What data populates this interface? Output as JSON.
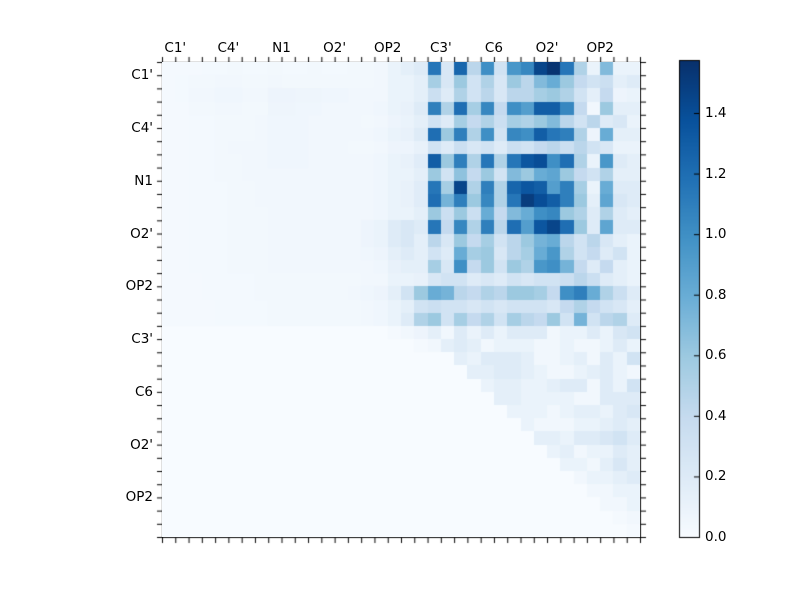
{
  "figure": {
    "background": "#ffffff",
    "frame_color": "#000000"
  },
  "chart_data": {
    "type": "heatmap",
    "title": "",
    "xlabel": "",
    "ylabel": "",
    "n": 36,
    "x_tick_labels": [
      "C1'",
      "C4'",
      "N1",
      "O2'",
      "OP2",
      "C3'",
      "C6",
      "O2'",
      "OP2"
    ],
    "y_tick_labels": [
      "C1'",
      "C4'",
      "N1",
      "O2'",
      "OP2",
      "C3'",
      "C6",
      "O2'",
      "OP2"
    ],
    "label_every_n_cells": 4,
    "grid": false,
    "colormap": "Blues",
    "vmin": 0.0,
    "vmax": 1.575,
    "colorbar_position": "right",
    "colorbar_ticks": [
      {
        "value": 0.0,
        "label": "0.0"
      },
      {
        "value": 0.2,
        "label": "0.2"
      },
      {
        "value": 0.4,
        "label": "0.4"
      },
      {
        "value": 0.6,
        "label": "0.6"
      },
      {
        "value": 0.8,
        "label": "0.8"
      },
      {
        "value": 1.0,
        "label": "1.0"
      },
      {
        "value": 1.2,
        "label": "1.2"
      },
      {
        "value": 1.4,
        "label": "1.4"
      }
    ],
    "cmap_stops": [
      [
        0.0,
        [
          247,
          251,
          255
        ]
      ],
      [
        0.125,
        [
          222,
          235,
          247
        ]
      ],
      [
        0.25,
        [
          198,
          219,
          239
        ]
      ],
      [
        0.375,
        [
          158,
          202,
          225
        ]
      ],
      [
        0.5,
        [
          107,
          174,
          214
        ]
      ],
      [
        0.625,
        [
          66,
          146,
          198
        ]
      ],
      [
        0.75,
        [
          33,
          113,
          181
        ]
      ],
      [
        0.875,
        [
          8,
          81,
          156
        ]
      ],
      [
        1.0,
        [
          8,
          48,
          107
        ]
      ]
    ],
    "matrix": [
      [
        0.02,
        0.02,
        0.02,
        0.03,
        0.03,
        0.04,
        0.03,
        0.03,
        0.04,
        0.03,
        0.03,
        0.04,
        0.03,
        0.03,
        0.04,
        0.04,
        0.05,
        0.1,
        0.15,
        0.2,
        1.15,
        0.25,
        1.25,
        0.45,
        1.0,
        0.3,
        0.95,
        1.05,
        1.45,
        1.55,
        1.15,
        0.5,
        0.1,
        0.7,
        0.1,
        0.1
      ],
      [
        0.02,
        0.03,
        0.04,
        0.04,
        0.05,
        0.05,
        0.04,
        0.04,
        0.05,
        0.04,
        0.04,
        0.04,
        0.04,
        0.04,
        0.04,
        0.04,
        0.05,
        0.1,
        0.1,
        0.15,
        0.55,
        0.25,
        0.6,
        0.3,
        0.5,
        0.25,
        0.6,
        0.45,
        0.7,
        0.8,
        0.6,
        0.4,
        0.3,
        0.35,
        0.15,
        0.2
      ],
      [
        0.02,
        0.03,
        0.05,
        0.05,
        0.06,
        0.06,
        0.05,
        0.05,
        0.08,
        0.08,
        0.07,
        0.07,
        0.06,
        0.06,
        0.05,
        0.05,
        0.05,
        0.1,
        0.1,
        0.15,
        0.35,
        0.2,
        0.5,
        0.3,
        0.45,
        0.25,
        0.45,
        0.45,
        0.55,
        0.6,
        0.5,
        0.3,
        0.15,
        0.4,
        0.08,
        0.1
      ],
      [
        0.02,
        0.02,
        0.04,
        0.04,
        0.05,
        0.05,
        0.04,
        0.04,
        0.07,
        0.07,
        0.06,
        0.06,
        0.05,
        0.05,
        0.05,
        0.05,
        0.06,
        0.1,
        0.12,
        0.2,
        1.1,
        0.5,
        1.2,
        0.55,
        1.05,
        0.4,
        1.0,
        0.9,
        1.3,
        1.3,
        1.05,
        0.4,
        0.05,
        0.6,
        0.15,
        0.15
      ],
      [
        0.02,
        0.02,
        0.03,
        0.03,
        0.04,
        0.04,
        0.04,
        0.05,
        0.06,
        0.06,
        0.06,
        0.05,
        0.05,
        0.05,
        0.05,
        0.04,
        0.05,
        0.08,
        0.1,
        0.15,
        0.3,
        0.2,
        0.55,
        0.4,
        0.5,
        0.35,
        0.55,
        0.5,
        0.6,
        0.7,
        0.45,
        0.3,
        0.45,
        0.2,
        0.25,
        0.1
      ],
      [
        0.02,
        0.02,
        0.03,
        0.03,
        0.04,
        0.04,
        0.04,
        0.05,
        0.06,
        0.06,
        0.06,
        0.05,
        0.05,
        0.05,
        0.05,
        0.05,
        0.06,
        0.1,
        0.12,
        0.2,
        1.2,
        0.6,
        1.1,
        0.5,
        1.0,
        0.3,
        1.05,
        1.0,
        1.3,
        1.15,
        1.1,
        0.5,
        0.08,
        0.8,
        0.15,
        0.15
      ],
      [
        0.02,
        0.02,
        0.03,
        0.03,
        0.04,
        0.05,
        0.05,
        0.05,
        0.06,
        0.06,
        0.06,
        0.05,
        0.05,
        0.05,
        0.04,
        0.04,
        0.05,
        0.08,
        0.08,
        0.12,
        0.3,
        0.2,
        0.35,
        0.25,
        0.3,
        0.2,
        0.35,
        0.3,
        0.4,
        0.45,
        0.35,
        0.45,
        0.3,
        0.25,
        0.1,
        0.1
      ],
      [
        0.02,
        0.02,
        0.03,
        0.03,
        0.04,
        0.04,
        0.05,
        0.05,
        0.06,
        0.06,
        0.06,
        0.05,
        0.05,
        0.05,
        0.05,
        0.05,
        0.06,
        0.1,
        0.12,
        0.18,
        1.3,
        0.6,
        1.1,
        0.5,
        1.15,
        0.5,
        1.15,
        1.35,
        1.4,
        1.0,
        1.2,
        0.5,
        0.1,
        0.95,
        0.2,
        0.15
      ],
      [
        0.02,
        0.02,
        0.03,
        0.03,
        0.04,
        0.04,
        0.05,
        0.05,
        0.05,
        0.05,
        0.05,
        0.05,
        0.05,
        0.05,
        0.05,
        0.05,
        0.06,
        0.1,
        0.1,
        0.15,
        0.6,
        0.3,
        0.65,
        0.4,
        0.6,
        0.3,
        0.7,
        0.6,
        0.8,
        0.85,
        0.6,
        0.4,
        0.3,
        0.5,
        0.15,
        0.15
      ],
      [
        0.02,
        0.02,
        0.03,
        0.03,
        0.03,
        0.04,
        0.04,
        0.05,
        0.05,
        0.05,
        0.05,
        0.05,
        0.05,
        0.05,
        0.05,
        0.05,
        0.06,
        0.1,
        0.12,
        0.18,
        1.15,
        0.55,
        1.45,
        0.5,
        1.1,
        0.5,
        1.25,
        1.35,
        1.3,
        0.9,
        1.1,
        0.55,
        0.1,
        0.8,
        0.2,
        0.2
      ],
      [
        0.02,
        0.02,
        0.03,
        0.03,
        0.03,
        0.04,
        0.04,
        0.05,
        0.05,
        0.05,
        0.05,
        0.05,
        0.05,
        0.05,
        0.05,
        0.05,
        0.06,
        0.1,
        0.12,
        0.18,
        1.2,
        0.75,
        1.1,
        0.6,
        1.05,
        0.5,
        1.15,
        1.5,
        1.4,
        1.3,
        1.1,
        0.6,
        0.15,
        0.85,
        0.25,
        0.2
      ],
      [
        0.02,
        0.02,
        0.03,
        0.03,
        0.03,
        0.04,
        0.04,
        0.04,
        0.05,
        0.05,
        0.05,
        0.05,
        0.05,
        0.05,
        0.05,
        0.05,
        0.06,
        0.1,
        0.1,
        0.15,
        0.6,
        0.35,
        0.6,
        0.35,
        0.8,
        0.4,
        0.7,
        0.8,
        1.0,
        1.05,
        0.6,
        0.5,
        0.2,
        0.5,
        0.2,
        0.15
      ],
      [
        0.02,
        0.02,
        0.03,
        0.03,
        0.03,
        0.04,
        0.04,
        0.04,
        0.05,
        0.05,
        0.05,
        0.05,
        0.05,
        0.05,
        0.05,
        0.08,
        0.1,
        0.2,
        0.25,
        0.2,
        1.15,
        0.4,
        1.05,
        0.5,
        1.1,
        0.45,
        1.2,
        0.9,
        1.35,
        1.45,
        1.2,
        0.6,
        0.2,
        0.85,
        0.2,
        0.2
      ],
      [
        0.02,
        0.02,
        0.03,
        0.03,
        0.03,
        0.04,
        0.04,
        0.04,
        0.05,
        0.05,
        0.05,
        0.05,
        0.05,
        0.05,
        0.05,
        0.08,
        0.1,
        0.2,
        0.25,
        0.15,
        0.45,
        0.25,
        0.6,
        0.4,
        0.55,
        0.3,
        0.45,
        0.6,
        0.75,
        0.8,
        0.45,
        0.3,
        0.45,
        0.25,
        0.15,
        0.1
      ],
      [
        0.02,
        0.02,
        0.03,
        0.03,
        0.03,
        0.04,
        0.04,
        0.04,
        0.05,
        0.05,
        0.05,
        0.05,
        0.05,
        0.05,
        0.05,
        0.06,
        0.08,
        0.15,
        0.2,
        0.15,
        0.3,
        0.2,
        0.8,
        0.55,
        0.6,
        0.25,
        0.45,
        0.55,
        0.8,
        0.95,
        0.5,
        0.3,
        0.4,
        0.2,
        0.3,
        0.1
      ],
      [
        0.02,
        0.02,
        0.03,
        0.03,
        0.03,
        0.04,
        0.04,
        0.04,
        0.05,
        0.05,
        0.05,
        0.05,
        0.05,
        0.05,
        0.05,
        0.05,
        0.06,
        0.12,
        0.15,
        0.15,
        0.55,
        0.25,
        1.0,
        0.4,
        0.6,
        0.3,
        0.6,
        0.5,
        0.95,
        1.0,
        0.75,
        0.4,
        0.2,
        0.4,
        0.15,
        0.1
      ],
      [
        0.02,
        0.02,
        0.02,
        0.03,
        0.03,
        0.03,
        0.03,
        0.04,
        0.04,
        0.04,
        0.04,
        0.04,
        0.04,
        0.04,
        0.04,
        0.05,
        0.05,
        0.1,
        0.1,
        0.12,
        0.25,
        0.3,
        0.3,
        0.2,
        0.25,
        0.2,
        0.3,
        0.25,
        0.3,
        0.3,
        0.35,
        0.45,
        0.35,
        0.2,
        0.15,
        0.1
      ],
      [
        0.02,
        0.02,
        0.02,
        0.03,
        0.03,
        0.03,
        0.03,
        0.04,
        0.04,
        0.04,
        0.04,
        0.04,
        0.04,
        0.04,
        0.05,
        0.06,
        0.08,
        0.15,
        0.3,
        0.6,
        0.8,
        0.75,
        0.45,
        0.4,
        0.5,
        0.45,
        0.6,
        0.6,
        0.55,
        0.4,
        1.0,
        1.1,
        0.8,
        0.5,
        0.35,
        0.2
      ],
      [
        0.02,
        0.02,
        0.02,
        0.02,
        0.03,
        0.03,
        0.03,
        0.03,
        0.04,
        0.04,
        0.04,
        0.04,
        0.04,
        0.04,
        0.04,
        0.05,
        0.06,
        0.1,
        0.15,
        0.3,
        0.35,
        0.3,
        0.3,
        0.25,
        0.3,
        0.25,
        0.3,
        0.3,
        0.3,
        0.25,
        0.4,
        0.5,
        0.4,
        0.3,
        0.25,
        0.15
      ],
      [
        0.02,
        0.02,
        0.02,
        0.02,
        0.03,
        0.03,
        0.03,
        0.03,
        0.04,
        0.04,
        0.04,
        0.04,
        0.04,
        0.04,
        0.04,
        0.05,
        0.06,
        0.1,
        0.2,
        0.5,
        0.6,
        0.3,
        0.55,
        0.4,
        0.5,
        0.3,
        0.55,
        0.45,
        0.4,
        0.6,
        0.3,
        0.75,
        0.3,
        0.45,
        0.5,
        0.2
      ],
      [
        0,
        0,
        0,
        0,
        0,
        0,
        0,
        0,
        0,
        0,
        0,
        0,
        0,
        0,
        0,
        0,
        0,
        0.02,
        0.05,
        0.08,
        0.15,
        0.05,
        0.2,
        0.1,
        0.2,
        0.1,
        0.2,
        0.2,
        0.2,
        0.05,
        0.1,
        0.1,
        0.2,
        0.1,
        0.25,
        0.3
      ],
      [
        0,
        0,
        0,
        0,
        0,
        0,
        0,
        0,
        0,
        0,
        0,
        0,
        0,
        0,
        0,
        0,
        0,
        0,
        0,
        0.02,
        0.05,
        0.15,
        0.2,
        0.15,
        0.05,
        0.1,
        0.1,
        0.1,
        0.05,
        0.05,
        0.1,
        0.05,
        0.05,
        0.1,
        0.2,
        0.1
      ],
      [
        0,
        0,
        0,
        0,
        0,
        0,
        0,
        0,
        0,
        0,
        0,
        0,
        0,
        0,
        0,
        0,
        0,
        0,
        0,
        0,
        0,
        0,
        0.15,
        0.1,
        0.2,
        0.2,
        0.2,
        0.15,
        0.05,
        0.05,
        0.1,
        0.15,
        0.05,
        0.2,
        0.1,
        0.3
      ],
      [
        0,
        0,
        0,
        0,
        0,
        0,
        0,
        0,
        0,
        0,
        0,
        0,
        0,
        0,
        0,
        0,
        0,
        0,
        0,
        0,
        0,
        0,
        0,
        0.15,
        0.15,
        0.2,
        0.2,
        0.15,
        0.1,
        0.05,
        0.05,
        0.1,
        0.15,
        0.2,
        0.1,
        0.05
      ],
      [
        0,
        0,
        0,
        0,
        0,
        0,
        0,
        0,
        0,
        0,
        0,
        0,
        0,
        0,
        0,
        0,
        0,
        0,
        0,
        0,
        0,
        0,
        0,
        0,
        0.1,
        0.15,
        0.15,
        0.1,
        0.1,
        0.15,
        0.2,
        0.2,
        0.05,
        0.2,
        0.1,
        0.3
      ],
      [
        0,
        0,
        0,
        0,
        0,
        0,
        0,
        0,
        0,
        0,
        0,
        0,
        0,
        0,
        0,
        0,
        0,
        0,
        0,
        0,
        0,
        0,
        0,
        0,
        0,
        0.15,
        0.15,
        0.1,
        0.1,
        0.1,
        0.1,
        0.05,
        0.05,
        0.2,
        0.2,
        0.2
      ],
      [
        0,
        0,
        0,
        0,
        0,
        0,
        0,
        0,
        0,
        0,
        0,
        0,
        0,
        0,
        0,
        0,
        0,
        0,
        0,
        0,
        0,
        0,
        0,
        0,
        0,
        0,
        0.1,
        0.1,
        0.1,
        0.05,
        0.1,
        0.15,
        0.15,
        0.1,
        0.2,
        0.25
      ],
      [
        0,
        0,
        0,
        0,
        0,
        0,
        0,
        0,
        0,
        0,
        0,
        0,
        0,
        0,
        0,
        0,
        0,
        0,
        0,
        0,
        0,
        0,
        0,
        0,
        0,
        0,
        0,
        0.1,
        0.05,
        0.05,
        0.05,
        0.1,
        0.1,
        0.15,
        0.2,
        0.15
      ],
      [
        0,
        0,
        0,
        0,
        0,
        0,
        0,
        0,
        0,
        0,
        0,
        0,
        0,
        0,
        0,
        0,
        0,
        0,
        0,
        0,
        0,
        0,
        0,
        0,
        0,
        0,
        0,
        0,
        0.15,
        0.15,
        0.1,
        0.2,
        0.2,
        0.25,
        0.3,
        0.2
      ],
      [
        0,
        0,
        0,
        0,
        0,
        0,
        0,
        0,
        0,
        0,
        0,
        0,
        0,
        0,
        0,
        0,
        0,
        0,
        0,
        0,
        0,
        0,
        0,
        0,
        0,
        0,
        0,
        0,
        0,
        0.1,
        0.15,
        0.05,
        0.1,
        0.1,
        0.2,
        0.15
      ],
      [
        0,
        0,
        0,
        0,
        0,
        0,
        0,
        0,
        0,
        0,
        0,
        0,
        0,
        0,
        0,
        0,
        0,
        0,
        0,
        0,
        0,
        0,
        0,
        0,
        0,
        0,
        0,
        0,
        0,
        0,
        0.1,
        0.1,
        0.05,
        0.15,
        0.25,
        0.15
      ],
      [
        0,
        0,
        0,
        0,
        0,
        0,
        0,
        0,
        0,
        0,
        0,
        0,
        0,
        0,
        0,
        0,
        0,
        0,
        0,
        0,
        0,
        0,
        0,
        0,
        0,
        0,
        0,
        0,
        0,
        0,
        0,
        0.05,
        0.1,
        0.1,
        0.15,
        0.2
      ],
      [
        0,
        0,
        0,
        0,
        0,
        0,
        0,
        0,
        0,
        0,
        0,
        0,
        0,
        0,
        0,
        0,
        0,
        0,
        0,
        0,
        0,
        0,
        0,
        0,
        0,
        0,
        0,
        0,
        0,
        0,
        0,
        0,
        0.05,
        0.05,
        0.1,
        0.1
      ],
      [
        0,
        0,
        0,
        0,
        0,
        0,
        0,
        0,
        0,
        0,
        0,
        0,
        0,
        0,
        0,
        0,
        0,
        0,
        0,
        0,
        0,
        0,
        0,
        0,
        0,
        0,
        0,
        0,
        0,
        0,
        0,
        0,
        0,
        0.05,
        0.05,
        0.1
      ],
      [
        0,
        0,
        0,
        0,
        0,
        0,
        0,
        0,
        0,
        0,
        0,
        0,
        0,
        0,
        0,
        0,
        0,
        0,
        0,
        0,
        0,
        0,
        0,
        0,
        0,
        0,
        0,
        0,
        0,
        0,
        0,
        0,
        0,
        0,
        0.02,
        0.05
      ],
      [
        0,
        0,
        0,
        0,
        0,
        0,
        0,
        0,
        0,
        0,
        0,
        0,
        0,
        0,
        0,
        0,
        0,
        0,
        0,
        0,
        0,
        0,
        0,
        0,
        0,
        0,
        0,
        0,
        0,
        0,
        0,
        0,
        0,
        0,
        0,
        0.02
      ]
    ]
  }
}
